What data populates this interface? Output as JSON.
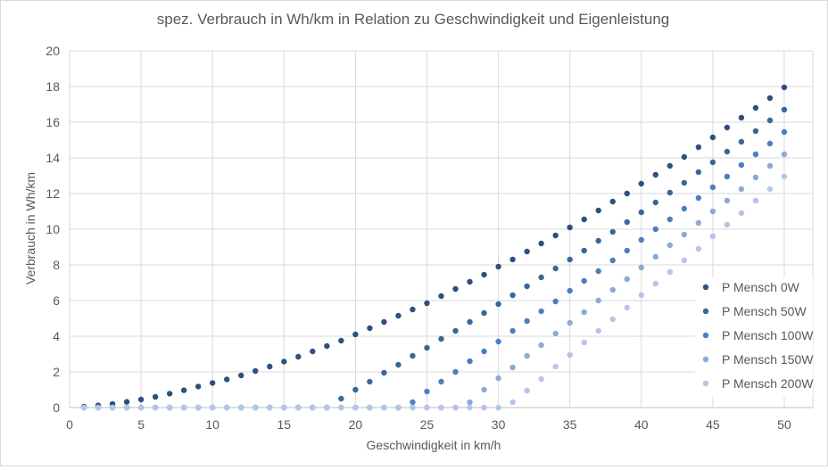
{
  "chart_data": {
    "type": "scatter",
    "title": "spez. Verbrauch in Wh/km in Relation zu Geschwindigkeit und Eigenleistung",
    "xlabel": "Geschwindigkeit in km/h",
    "ylabel": "Verbrauch in Wh/km",
    "xlim": [
      0,
      52
    ],
    "ylim": [
      0,
      20
    ],
    "x_ticks": [
      "0",
      "5",
      "10",
      "15",
      "20",
      "25",
      "30",
      "35",
      "40",
      "45",
      "50"
    ],
    "y_ticks": [
      "0",
      "2",
      "4",
      "6",
      "8",
      "10",
      "12",
      "14",
      "16",
      "18",
      "20"
    ],
    "grid": true,
    "legend_position": "right",
    "x": [
      1,
      2,
      3,
      4,
      5,
      6,
      7,
      8,
      9,
      10,
      11,
      12,
      13,
      14,
      15,
      16,
      17,
      18,
      19,
      20,
      21,
      22,
      23,
      24,
      25,
      26,
      27,
      28,
      29,
      30,
      31,
      32,
      33,
      34,
      35,
      36,
      37,
      38,
      39,
      40,
      41,
      42,
      43,
      44,
      45,
      46,
      47,
      48,
      49,
      50
    ],
    "series": [
      {
        "name": "P Mensch 0W",
        "color": "#2f4f7f",
        "values": [
          0.05,
          0.12,
          0.2,
          0.32,
          0.45,
          0.6,
          0.78,
          0.97,
          1.18,
          1.38,
          1.58,
          1.8,
          2.05,
          2.3,
          2.58,
          2.85,
          3.15,
          3.45,
          3.75,
          4.1,
          4.45,
          4.8,
          5.15,
          5.5,
          5.85,
          6.25,
          6.65,
          7.05,
          7.45,
          7.9,
          8.3,
          8.75,
          9.2,
          9.65,
          10.1,
          10.55,
          11.05,
          11.55,
          12.0,
          12.55,
          13.05,
          13.55,
          14.05,
          14.6,
          15.15,
          15.7,
          16.25,
          16.8,
          17.35,
          17.95
        ]
      },
      {
        "name": "P Mensch 50W",
        "color": "#3a6797",
        "values": [
          0,
          0,
          0,
          0,
          0,
          0,
          0,
          0,
          0,
          0,
          0,
          0,
          0,
          0,
          0,
          0,
          0,
          0,
          0.5,
          1.0,
          1.45,
          1.95,
          2.4,
          2.9,
          3.35,
          3.85,
          4.3,
          4.8,
          5.3,
          5.8,
          6.3,
          6.8,
          7.3,
          7.8,
          8.3,
          8.8,
          9.35,
          9.85,
          10.4,
          10.95,
          11.5,
          12.05,
          12.6,
          13.2,
          13.75,
          14.35,
          14.9,
          15.5,
          16.1,
          16.7
        ]
      },
      {
        "name": "P Mensch 100W",
        "color": "#4a7fc0",
        "values": [
          0,
          0,
          0,
          0,
          0,
          0,
          0,
          0,
          0,
          0,
          0,
          0,
          0,
          0,
          0,
          0,
          0,
          0,
          0,
          0,
          0,
          0,
          0,
          0.3,
          0.9,
          1.45,
          2.0,
          2.6,
          3.15,
          3.7,
          4.3,
          4.85,
          5.4,
          5.95,
          6.55,
          7.1,
          7.65,
          8.25,
          8.8,
          9.4,
          10.0,
          10.55,
          11.15,
          11.75,
          12.35,
          12.95,
          13.6,
          14.2,
          14.8,
          15.45
        ]
      },
      {
        "name": "P Mensch 150W",
        "color": "#8fa8d6",
        "values": [
          0,
          0,
          0,
          0,
          0,
          0,
          0,
          0,
          0,
          0,
          0,
          0,
          0,
          0,
          0,
          0,
          0,
          0,
          0,
          0,
          0,
          0,
          0,
          0,
          0,
          0,
          0,
          0.3,
          1.0,
          1.65,
          2.25,
          2.9,
          3.5,
          4.15,
          4.75,
          5.35,
          6.0,
          6.6,
          7.2,
          7.85,
          8.45,
          9.1,
          9.7,
          10.35,
          11.0,
          11.6,
          12.25,
          12.9,
          13.55,
          14.2
        ]
      },
      {
        "name": "P Mensch 200W",
        "color": "#b4c6e6",
        "values": [
          0,
          0,
          0,
          0,
          0,
          0,
          0,
          0,
          0,
          0,
          0,
          0,
          0,
          0,
          0,
          0,
          0,
          0,
          0,
          0,
          0,
          0,
          0,
          0,
          0,
          0,
          0,
          0,
          0,
          0,
          0.3,
          0.95,
          1.6,
          2.3,
          2.95,
          3.65,
          4.3,
          4.95,
          5.6,
          6.3,
          6.95,
          7.6,
          8.25,
          8.9,
          9.6,
          10.25,
          10.9,
          11.6,
          12.25,
          12.95
        ]
      }
    ]
  }
}
